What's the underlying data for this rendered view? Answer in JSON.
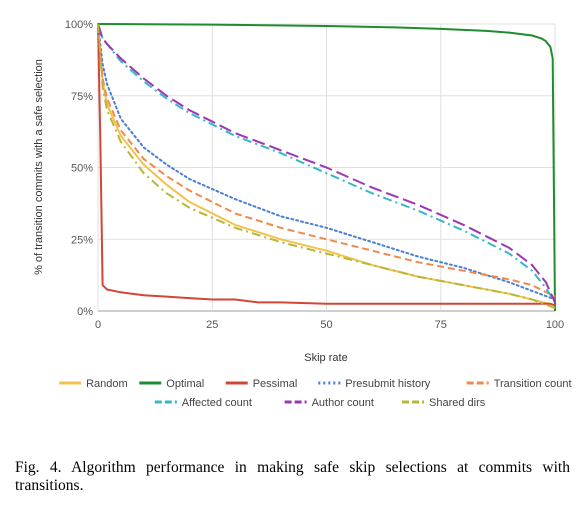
{
  "chart_data": {
    "type": "line",
    "xlabel": "Skip rate",
    "ylabel": "% of transition commits with a safe selection",
    "xlim": [
      0,
      100
    ],
    "ylim": [
      0,
      100
    ],
    "x_ticks": [
      0,
      25,
      50,
      75,
      100
    ],
    "x_tick_labels": [
      "0",
      "25",
      "50",
      "75",
      "100"
    ],
    "y_ticks": [
      0,
      25,
      50,
      75,
      100
    ],
    "y_tick_labels": [
      "0%",
      "25%",
      "50%",
      "75%",
      "100%"
    ],
    "grid": true,
    "legend_position": "bottom",
    "series": [
      {
        "name": "Random",
        "color": "#f2c14e",
        "dash": "solid",
        "x": [
          0,
          1,
          2,
          5,
          10,
          15,
          20,
          30,
          40,
          50,
          60,
          70,
          80,
          90,
          95,
          100
        ],
        "y": [
          100,
          80,
          72,
          61,
          51,
          44,
          38,
          30,
          25,
          21,
          16,
          12,
          9,
          6,
          4,
          2
        ]
      },
      {
        "name": "Optimal",
        "color": "#1e8c2f",
        "dash": "solid",
        "x": [
          0,
          25,
          50,
          65,
          75,
          85,
          90,
          95,
          97,
          98,
          99,
          99.5,
          100
        ],
        "y": [
          100,
          99.8,
          99.3,
          98.8,
          98.3,
          97.6,
          97,
          96,
          95,
          94,
          92,
          88,
          0
        ]
      },
      {
        "name": "Pessimal",
        "color": "#d24638",
        "dash": "solid",
        "x": [
          0,
          0.5,
          1,
          2,
          5,
          10,
          15,
          20,
          25,
          30,
          35,
          40,
          50,
          60,
          70,
          80,
          90,
          95,
          99,
          100
        ],
        "y": [
          100,
          60,
          9,
          7.5,
          6.5,
          5.5,
          5,
          4.5,
          4,
          4,
          3,
          3,
          2.5,
          2.5,
          2.5,
          2.5,
          2.5,
          2.5,
          2.5,
          2
        ]
      },
      {
        "name": "Presubmit history",
        "color": "#4a7fd6",
        "dash": "dotted",
        "x": [
          0,
          1,
          2,
          5,
          10,
          15,
          20,
          30,
          40,
          50,
          60,
          70,
          80,
          90,
          95,
          100
        ],
        "y": [
          100,
          86,
          79,
          67,
          57,
          51,
          46,
          39,
          33,
          29,
          24,
          19,
          15,
          10,
          7,
          4
        ]
      },
      {
        "name": "Transition count",
        "color": "#ef8a4c",
        "dash": "dashed",
        "x": [
          0,
          1,
          2,
          5,
          10,
          15,
          20,
          30,
          40,
          50,
          60,
          70,
          80,
          90,
          95,
          100
        ],
        "y": [
          100,
          81,
          74,
          63,
          53,
          47,
          42,
          34,
          29,
          25,
          21,
          17,
          14,
          11,
          9,
          5
        ]
      },
      {
        "name": "Affected count",
        "color": "#35b8c4",
        "dash": "dashdot",
        "x": [
          0,
          1,
          2,
          5,
          10,
          15,
          20,
          30,
          40,
          50,
          60,
          70,
          80,
          90,
          95,
          98,
          100
        ],
        "y": [
          100,
          95,
          93,
          87,
          80,
          74,
          69,
          61,
          55,
          48,
          41,
          35,
          28,
          20,
          14,
          8,
          3
        ]
      },
      {
        "name": "Author count",
        "color": "#9b36b7",
        "dash": "longdash",
        "x": [
          0,
          1,
          2,
          5,
          10,
          15,
          20,
          30,
          40,
          50,
          60,
          70,
          80,
          90,
          95,
          98,
          100
        ],
        "y": [
          100,
          95,
          93,
          88,
          81,
          75,
          70,
          62,
          56,
          50,
          43,
          37,
          30,
          22,
          16,
          10,
          3
        ]
      },
      {
        "name": "Shared dirs",
        "color": "#b9b635",
        "dash": "dashdot",
        "x": [
          0,
          1,
          2,
          5,
          10,
          15,
          20,
          30,
          40,
          50,
          60,
          70,
          80,
          90,
          95,
          100
        ],
        "y": [
          100,
          78,
          70,
          59,
          48,
          41,
          36,
          29,
          24,
          20,
          16,
          12,
          9,
          6,
          4,
          1
        ]
      }
    ]
  },
  "caption": {
    "text": "Fig. 4.   Algorithm performance in making safe skip selections at commits with transitions."
  }
}
